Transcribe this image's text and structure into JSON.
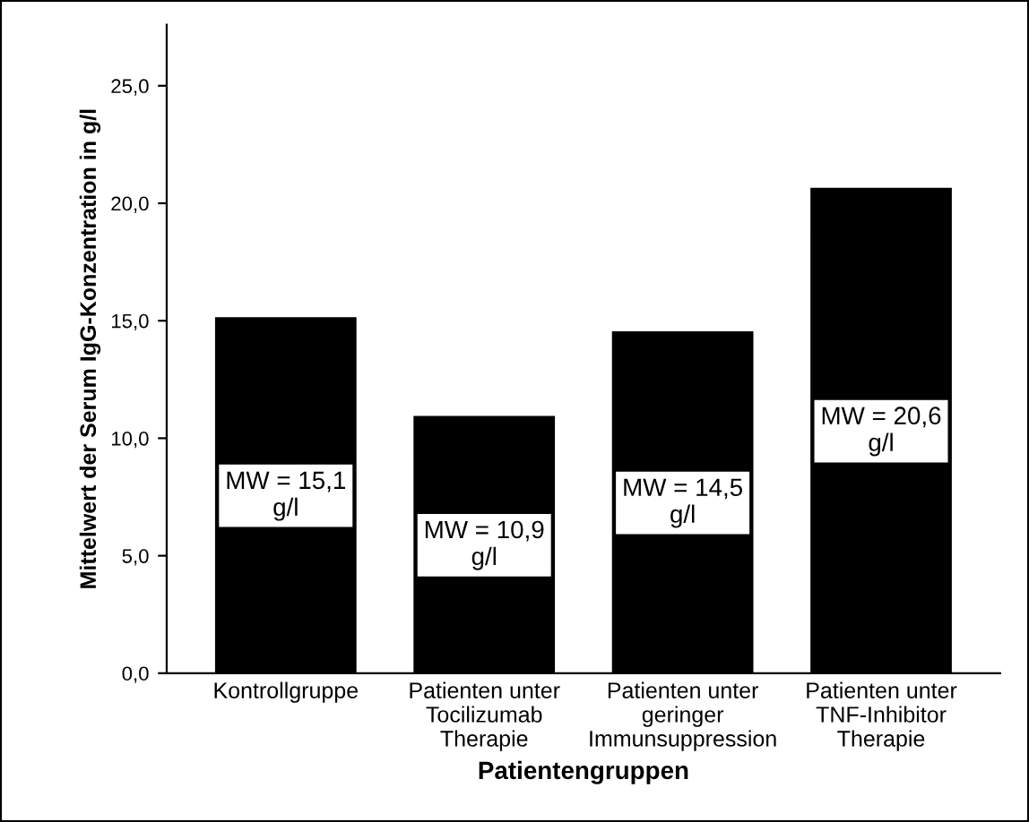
{
  "chart_data": {
    "type": "bar",
    "xlabel": "Patientengruppen",
    "ylabel": "Mittelwert der Serum IgG-Konzentration in g/l",
    "categories": [
      "Kontrollgruppe",
      "Patienten unter\nTocilizumab\nTherapie",
      "Patienten unter\ngeringer\nImmunsuppression",
      "Patienten unter\nTNF-Inhibitor\nTherapie"
    ],
    "values": [
      15.1,
      10.9,
      14.5,
      20.6
    ],
    "color": "#000000",
    "value_labels": [
      "MW = 15,1\ng/l",
      "MW = 10,9\ng/l",
      "MW = 14,5\ng/l",
      "MW = 20,6\ng/l"
    ],
    "ylim": [
      0,
      27.6
    ],
    "yticks": [
      {
        "value": 0,
        "label": "0,0"
      },
      {
        "value": 5,
        "label": "5,0"
      },
      {
        "value": 10,
        "label": "10,0"
      },
      {
        "value": 15,
        "label": "15,0"
      },
      {
        "value": 20,
        "label": "20,0"
      },
      {
        "value": 25,
        "label": "25,0"
      }
    ],
    "grid": false
  }
}
